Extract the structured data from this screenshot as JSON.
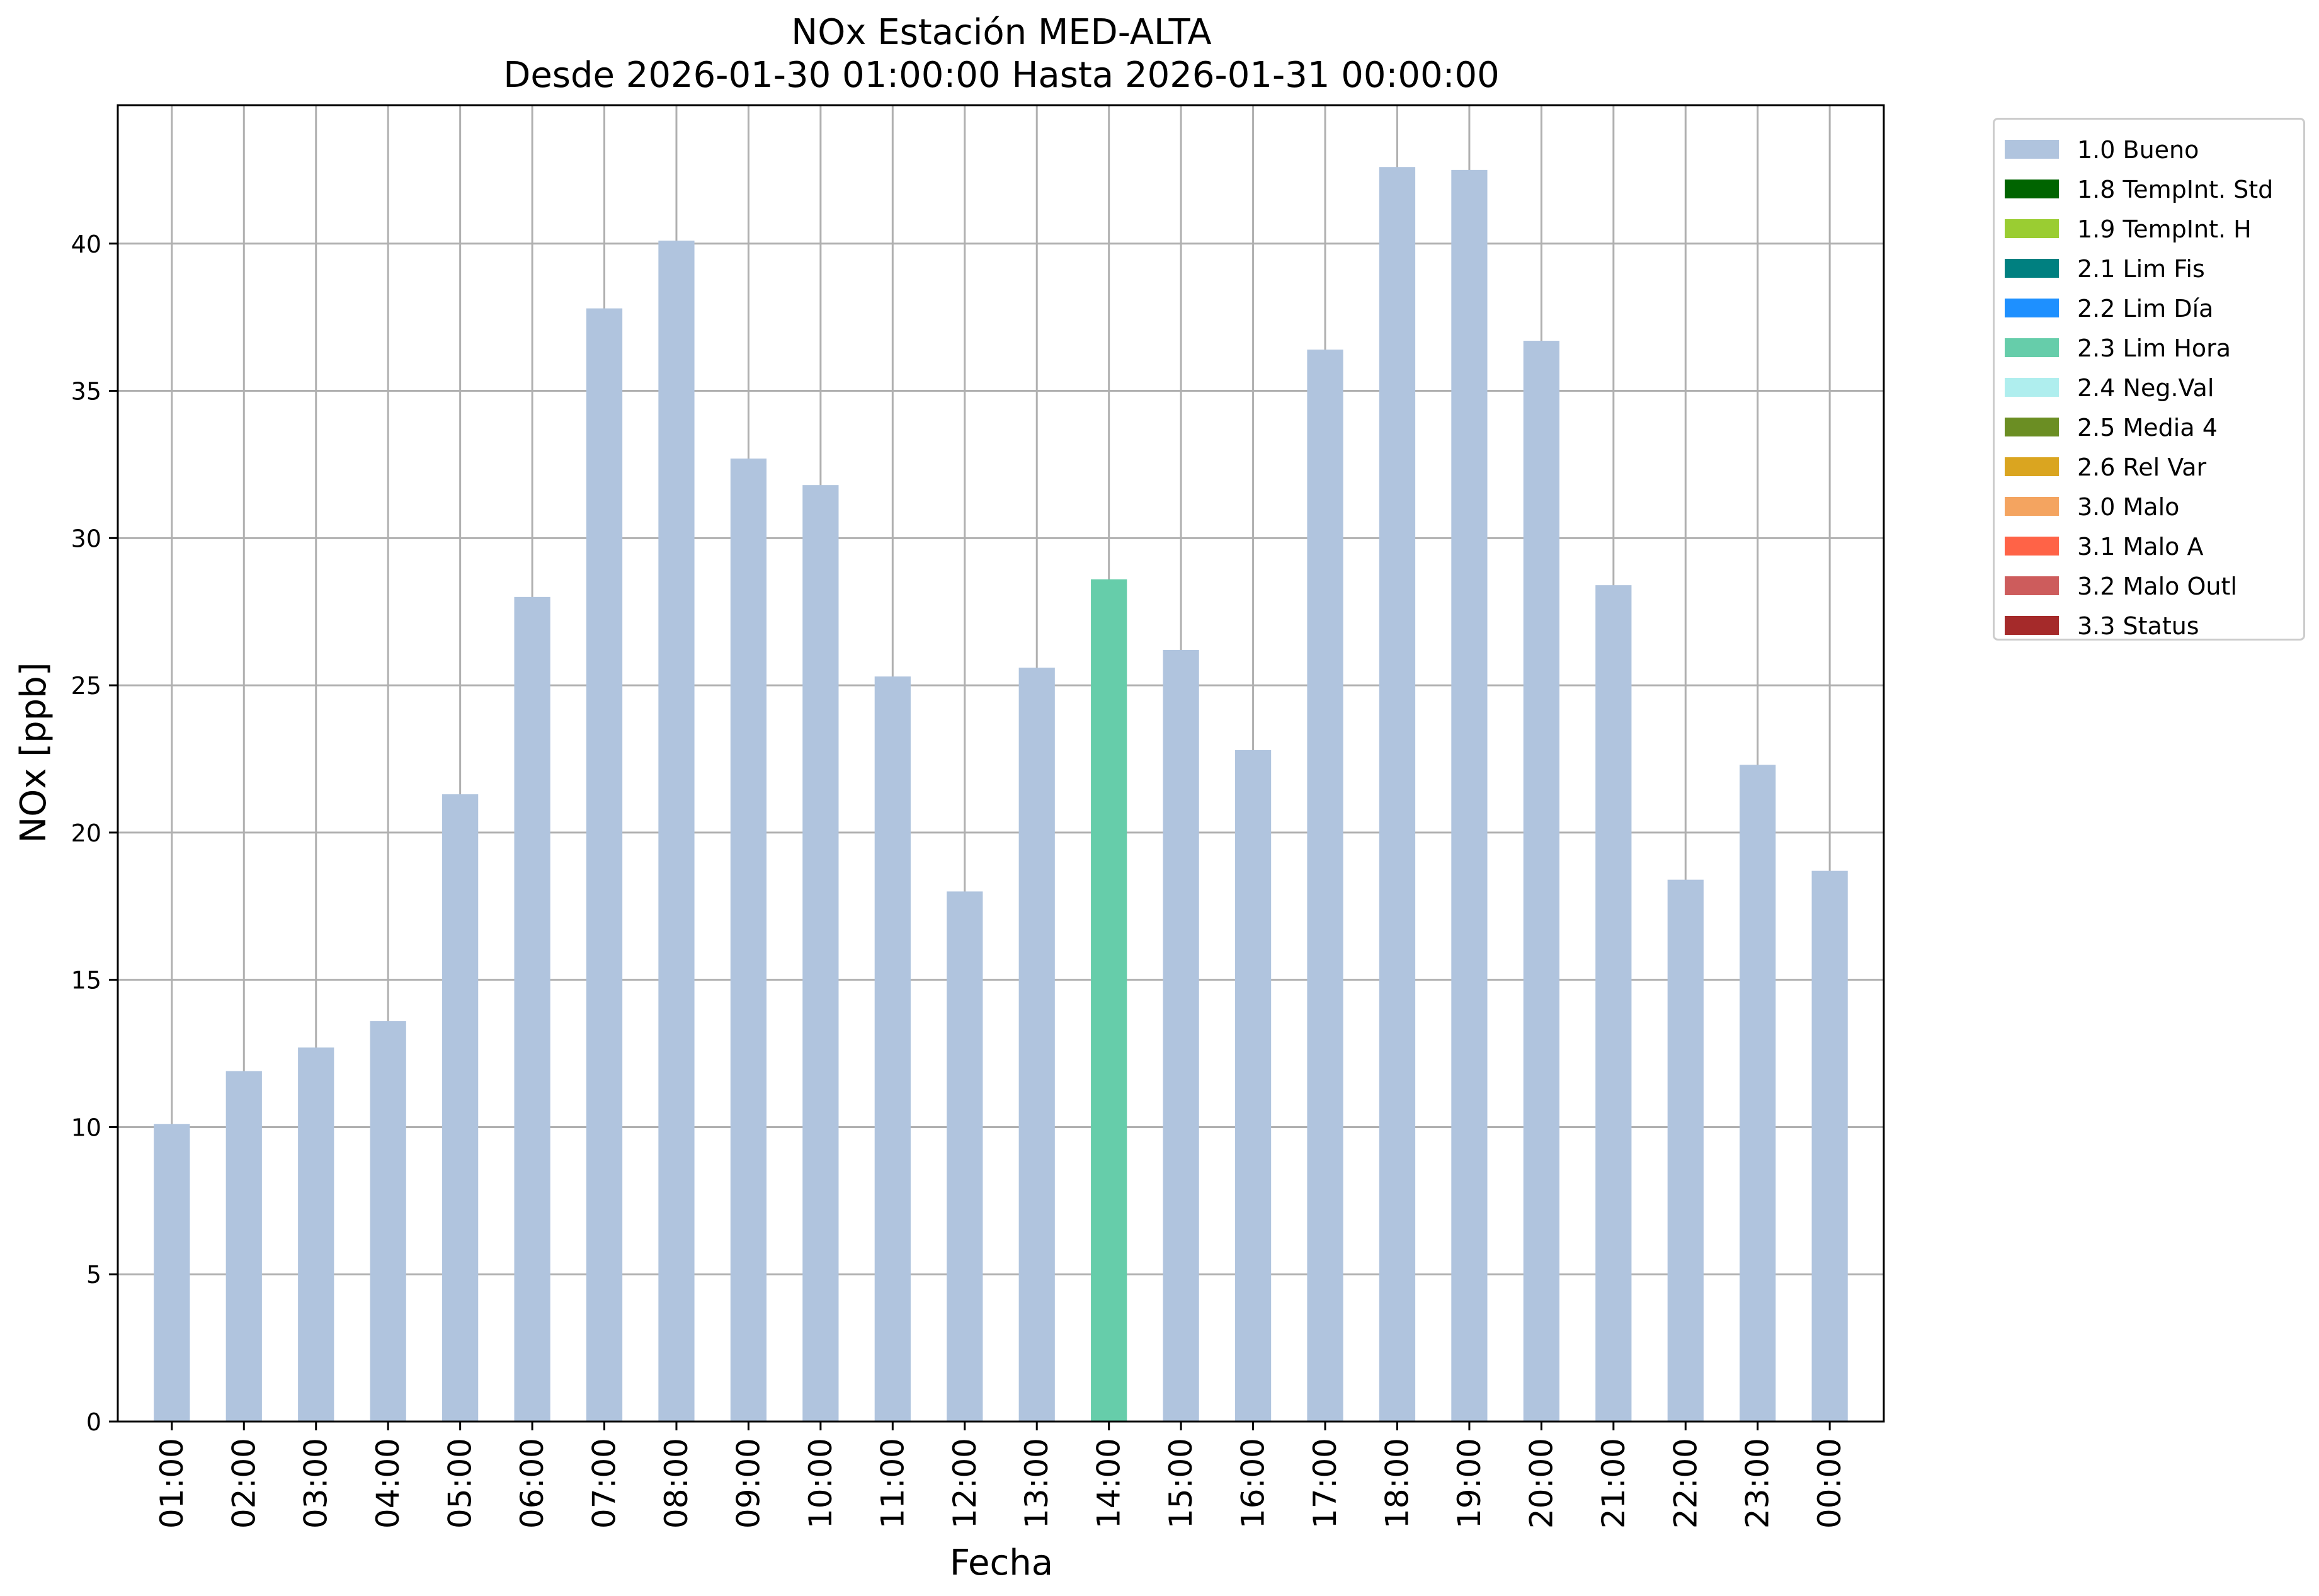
{
  "chart_data": {
    "type": "bar",
    "title": "NOx Estación MED-ALTA",
    "subtitle": "Desde 2026-01-30 01:00:00 Hasta 2026-01-31 00:00:00",
    "xlabel": "Fecha",
    "ylabel": "NOx [ppb]",
    "ylim": [
      0,
      44.7
    ],
    "yticks": [
      0,
      5,
      10,
      15,
      20,
      25,
      30,
      35,
      40
    ],
    "grid": true,
    "legend_position": "outside-top-right",
    "categories": [
      "01:00",
      "02:00",
      "03:00",
      "04:00",
      "05:00",
      "06:00",
      "07:00",
      "08:00",
      "09:00",
      "10:00",
      "11:00",
      "12:00",
      "13:00",
      "14:00",
      "15:00",
      "16:00",
      "17:00",
      "18:00",
      "19:00",
      "20:00",
      "21:00",
      "22:00",
      "23:00",
      "00:00"
    ],
    "values": [
      10.1,
      11.9,
      12.7,
      13.6,
      21.3,
      28.0,
      37.8,
      40.1,
      32.7,
      31.8,
      25.3,
      18.0,
      25.6,
      28.6,
      26.2,
      22.8,
      36.4,
      42.6,
      42.5,
      36.7,
      28.4,
      18.4,
      22.3,
      18.7
    ],
    "flags": [
      "1.0 Bueno",
      "1.0 Bueno",
      "1.0 Bueno",
      "1.0 Bueno",
      "1.0 Bueno",
      "1.0 Bueno",
      "1.0 Bueno",
      "1.0 Bueno",
      "1.0 Bueno",
      "1.0 Bueno",
      "1.0 Bueno",
      "1.0 Bueno",
      "1.0 Bueno",
      "2.3 Lim Hora",
      "1.0 Bueno",
      "1.0 Bueno",
      "1.0 Bueno",
      "1.0 Bueno",
      "1.0 Bueno",
      "1.0 Bueno",
      "1.0 Bueno",
      "1.0 Bueno",
      "1.0 Bueno",
      "1.0 Bueno"
    ],
    "legend": [
      {
        "label": "1.0 Bueno",
        "color": "#b0c4de"
      },
      {
        "label": "1.8 TempInt. Std",
        "color": "#006400"
      },
      {
        "label": "1.9 TempInt. H",
        "color": "#9acd32"
      },
      {
        "label": "2.1 Lim Fis",
        "color": "#008080"
      },
      {
        "label": "2.2 Lim Día",
        "color": "#1e90ff"
      },
      {
        "label": "2.3 Lim Hora",
        "color": "#66cdaa"
      },
      {
        "label": "2.4 Neg.Val",
        "color": "#afeeee"
      },
      {
        "label": "2.5 Media 4",
        "color": "#6b8e23"
      },
      {
        "label": "2.6 Rel Var",
        "color": "#daa520"
      },
      {
        "label": "3.0 Malo",
        "color": "#f4a460"
      },
      {
        "label": "3.1 Malo A",
        "color": "#ff6347"
      },
      {
        "label": "3.2 Malo Outl",
        "color": "#cd5c5c"
      },
      {
        "label": "3.3 Status",
        "color": "#a52a2a"
      }
    ]
  }
}
